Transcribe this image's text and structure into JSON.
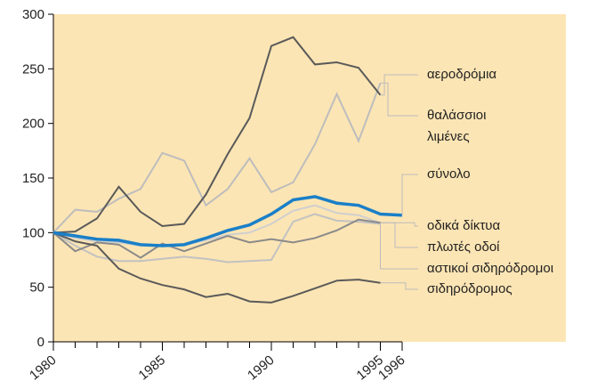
{
  "chart_data": {
    "type": "line",
    "x": [
      1980,
      1981,
      1982,
      1983,
      1984,
      1985,
      1986,
      1987,
      1988,
      1989,
      1990,
      1991,
      1992,
      1993,
      1994,
      1995,
      1996
    ],
    "xlim": [
      1980,
      1996
    ],
    "xticks": [
      1980,
      1985,
      1990,
      1995,
      1996
    ],
    "ylim": [
      0,
      300
    ],
    "yticks": [
      0,
      50,
      100,
      150,
      200,
      250,
      300
    ],
    "series": [
      {
        "name": "αεροδρόμια",
        "color": "#5a5a5a",
        "values": [
          100,
          101,
          113,
          142,
          119,
          106,
          108,
          135,
          172,
          205,
          271,
          279,
          254,
          256,
          251,
          226,
          null
        ]
      },
      {
        "name": "θαλάσσιοι λιμένες",
        "color": "#bdbdbd",
        "values": [
          100,
          121,
          119,
          131,
          140,
          173,
          166,
          125,
          140,
          168,
          137,
          146,
          181,
          227,
          184,
          237,
          null
        ]
      },
      {
        "name": "σύνολο",
        "color": "#1a7fc8",
        "values": [
          100,
          97,
          94,
          93,
          89,
          88,
          89,
          95,
          102,
          107,
          117,
          130,
          133,
          127,
          125,
          117,
          116
        ]
      },
      {
        "name": "οδικά δίκτυα",
        "color": "#cfcfcf",
        "values": [
          100,
          95,
          92,
          91,
          88,
          89,
          89,
          93,
          98,
          100,
          108,
          120,
          125,
          118,
          116,
          109,
          null
        ]
      },
      {
        "name": "πλωτές οδοί",
        "color": "#8a8a8a",
        "values": [
          100,
          83,
          91,
          89,
          77,
          90,
          83,
          90,
          97,
          91,
          94,
          91,
          95,
          102,
          112,
          109,
          null
        ]
      },
      {
        "name": "αστικοί σιδηρόδρομοι",
        "color": "#c2c2c2",
        "values": [
          100,
          88,
          78,
          74,
          74,
          76,
          78,
          76,
          73,
          74,
          75,
          110,
          117,
          111,
          110,
          108,
          null
        ]
      },
      {
        "name": "σιδηρόδρομος",
        "color": "#5a5a5a",
        "values": [
          100,
          92,
          88,
          67,
          58,
          52,
          48,
          41,
          44,
          37,
          36,
          42,
          49,
          56,
          57,
          54,
          null
        ]
      }
    ]
  }
}
